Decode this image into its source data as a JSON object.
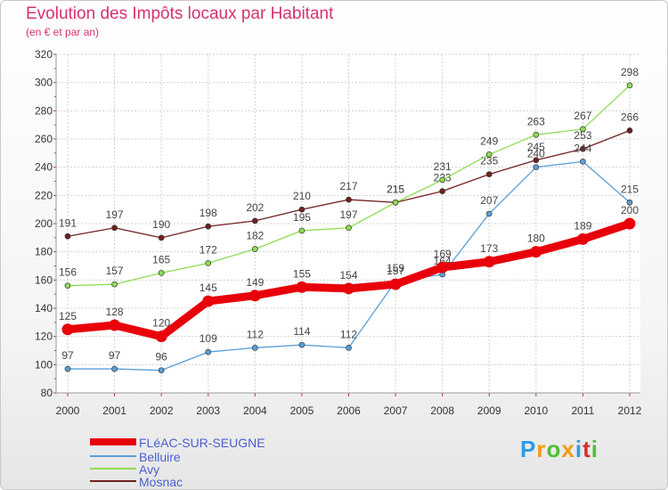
{
  "chart_data": {
    "type": "line",
    "title": "Evolution des Impôts locaux par Habitant",
    "subtitle": "(en € et par an)",
    "xlabel": "",
    "ylabel": "",
    "ylim": [
      80,
      320
    ],
    "ytick_step": 20,
    "categories": [
      "2000",
      "2001",
      "2002",
      "2003",
      "2004",
      "2005",
      "2006",
      "2007",
      "2008",
      "2009",
      "2010",
      "2011",
      "2012"
    ],
    "series": [
      {
        "name": "FLéAC-SUR-SEUGNE",
        "color": "#e8000a",
        "emphasis": true,
        "values": [
          125,
          128,
          120,
          145,
          149,
          155,
          154,
          157,
          169,
          173,
          180,
          189,
          200
        ]
      },
      {
        "name": "Belluire",
        "color": "#5b9fd6",
        "emphasis": false,
        "values": [
          97,
          97,
          96,
          109,
          112,
          114,
          112,
          159,
          164,
          207,
          240,
          244,
          215
        ]
      },
      {
        "name": "Avy",
        "color": "#8fdc52",
        "emphasis": false,
        "values": [
          156,
          157,
          165,
          172,
          182,
          195,
          197,
          215,
          231,
          249,
          263,
          267,
          298
        ]
      },
      {
        "name": "Mosnac",
        "color": "#702020",
        "emphasis": false,
        "values": [
          191,
          197,
          190,
          198,
          202,
          210,
          217,
          215,
          223,
          235,
          245,
          253,
          266
        ]
      }
    ]
  },
  "logo": {
    "letters": [
      "P",
      "r",
      "o",
      "x",
      "i",
      "t",
      "i"
    ],
    "colors": [
      "#2e9be6",
      "#f39a12",
      "#4fbf3a",
      "#f39a12",
      "#2e9be6",
      "#d62f2f",
      "#4fbf3a"
    ]
  }
}
